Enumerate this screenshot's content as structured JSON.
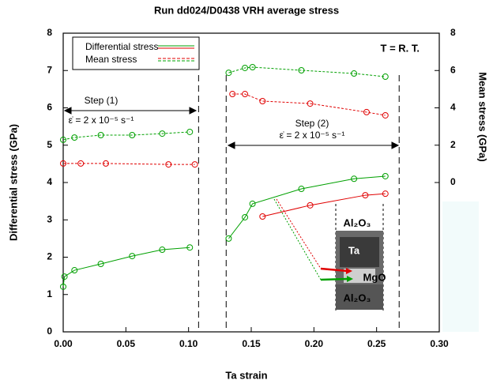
{
  "chart_data": {
    "type": "line",
    "title": "Run dd024/D0438  VRH average stress",
    "x_label": "Ta strain",
    "y_label": "Differential stress (GPa)",
    "y2_label": "Mean stress (GPa)",
    "xlim": [
      0,
      0.3
    ],
    "xticks": [
      {
        "value": 0,
        "label": "0.00"
      },
      {
        "value": 0.05,
        "label": "0.05"
      },
      {
        "value": 0.1,
        "label": "0.10"
      },
      {
        "value": 0.15,
        "label": "0.15"
      },
      {
        "value": 0.2,
        "label": "0.20"
      },
      {
        "value": 0.25,
        "label": "0.25"
      },
      {
        "value": 0.3,
        "label": "0.30"
      }
    ],
    "ylim": [
      0,
      8
    ],
    "yticks": [
      0,
      1,
      2,
      3,
      4,
      5,
      6,
      7,
      8
    ],
    "y2lim": [
      -8,
      8
    ],
    "y2ticks": [
      0,
      2,
      4,
      6,
      8
    ],
    "step_boundaries": [
      0.108,
      0.13,
      0.268
    ],
    "series": [
      {
        "name": "Differential stress",
        "color": "#00a000",
        "dash": false,
        "x": [
          0,
          0.001,
          0.009,
          0.03,
          0.055,
          0.079,
          0.101,
          null,
          0.132,
          0.145,
          0.151,
          0.19,
          0.232,
          0.257
        ],
        "values": [
          1.21,
          1.48,
          1.65,
          1.82,
          2.03,
          2.2,
          2.26,
          null,
          2.5,
          3.07,
          3.43,
          3.83,
          4.1,
          4.17
        ]
      },
      {
        "name": "Differential stress",
        "color": "#e00000",
        "dash": false,
        "x": [
          0.159,
          0.197,
          0.241,
          0.257
        ],
        "values": [
          3.09,
          3.39,
          3.66,
          3.7
        ]
      },
      {
        "name": "Mean stress",
        "color": "#e00000",
        "dash": true,
        "axis": "y2",
        "x": [
          0,
          0.014,
          0.034,
          0.084,
          0.105,
          null,
          0.135,
          0.145,
          0.159,
          0.197,
          0.242,
          0.257
        ],
        "values": [
          1.02,
          1.02,
          1.02,
          0.97,
          0.97,
          null,
          4.74,
          4.74,
          4.36,
          4.23,
          3.77,
          3.6
        ]
      },
      {
        "name": "Mean stress",
        "color": "#00a000",
        "dash": true,
        "axis": "y2",
        "x": [
          0,
          0.009,
          0.03,
          0.055,
          0.079,
          0.101,
          null,
          0.132,
          0.145,
          0.151,
          0.19,
          0.232,
          0.257
        ],
        "values": [
          2.29,
          2.41,
          2.54,
          2.54,
          2.62,
          2.71,
          null,
          5.88,
          6.14,
          6.18,
          6.01,
          5.84,
          5.67
        ]
      }
    ],
    "annotations": {
      "temperature": "T = R. T.",
      "step1": "Step (1)",
      "rate1": "ε̇ = 2 x 10⁻⁵ s⁻¹",
      "step2": "Step (2)",
      "rate2": "ε̇ = 2 x 10⁻⁵ s⁻¹",
      "inset_top": "Al₂O₃",
      "inset_ta": "Ta",
      "inset_mgo": "MgO",
      "inset_bottom": "Al₂O₃"
    }
  }
}
